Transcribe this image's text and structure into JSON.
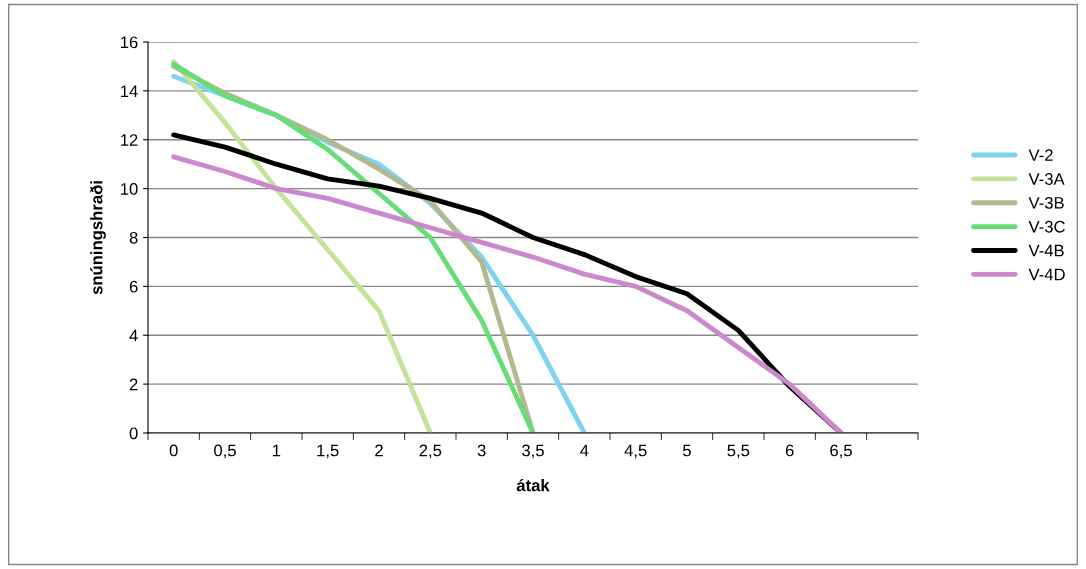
{
  "chart_data": {
    "type": "line",
    "xlabel": "átak",
    "ylabel": "snúningshraði",
    "categories": [
      "0",
      "0,5",
      "1",
      "1,5",
      "2",
      "2,5",
      "3",
      "3,5",
      "4",
      "4,5",
      "5",
      "5,5",
      "6",
      "6,5",
      null
    ],
    "series": [
      {
        "name": "V-2",
        "color": "#7fd3f0",
        "values": [
          14.6,
          13.8,
          13.0,
          11.9,
          11.0,
          9.4,
          7.2,
          4.0,
          0,
          null,
          null,
          null,
          null,
          null,
          null
        ]
      },
      {
        "name": "V-3A",
        "color": "#c4e39a",
        "values": [
          15.2,
          12.7,
          10.0,
          7.5,
          5.0,
          0,
          null,
          null,
          null,
          null,
          null,
          null,
          null,
          null,
          null
        ]
      },
      {
        "name": "V-3B",
        "color": "#b3b98e",
        "values": [
          15.0,
          13.9,
          13.0,
          12.0,
          10.8,
          9.5,
          7.0,
          0,
          null,
          null,
          null,
          null,
          null,
          null,
          null
        ]
      },
      {
        "name": "V-3C",
        "color": "#66dd77",
        "values": [
          15.1,
          13.8,
          13.0,
          11.6,
          9.8,
          8.0,
          4.6,
          0,
          null,
          null,
          null,
          null,
          null,
          null,
          null
        ]
      },
      {
        "name": "V-4B",
        "color": "#000000",
        "values": [
          12.2,
          11.7,
          11.0,
          10.4,
          10.1,
          9.6,
          9.0,
          8.0,
          7.3,
          6.4,
          5.7,
          4.2,
          1.9,
          0,
          null
        ]
      },
      {
        "name": "V-4D",
        "color": "#cc88cc",
        "values": [
          11.3,
          10.7,
          10.0,
          9.6,
          9.0,
          8.4,
          7.8,
          7.2,
          6.5,
          6.0,
          5.0,
          3.5,
          2.0,
          0,
          null
        ]
      }
    ],
    "ylim": [
      0,
      16
    ],
    "yticks": [
      0,
      2,
      4,
      6,
      8,
      10,
      12,
      14,
      16
    ],
    "grid": "y",
    "legend": "right",
    "marker": "none",
    "line_style": "solid"
  }
}
